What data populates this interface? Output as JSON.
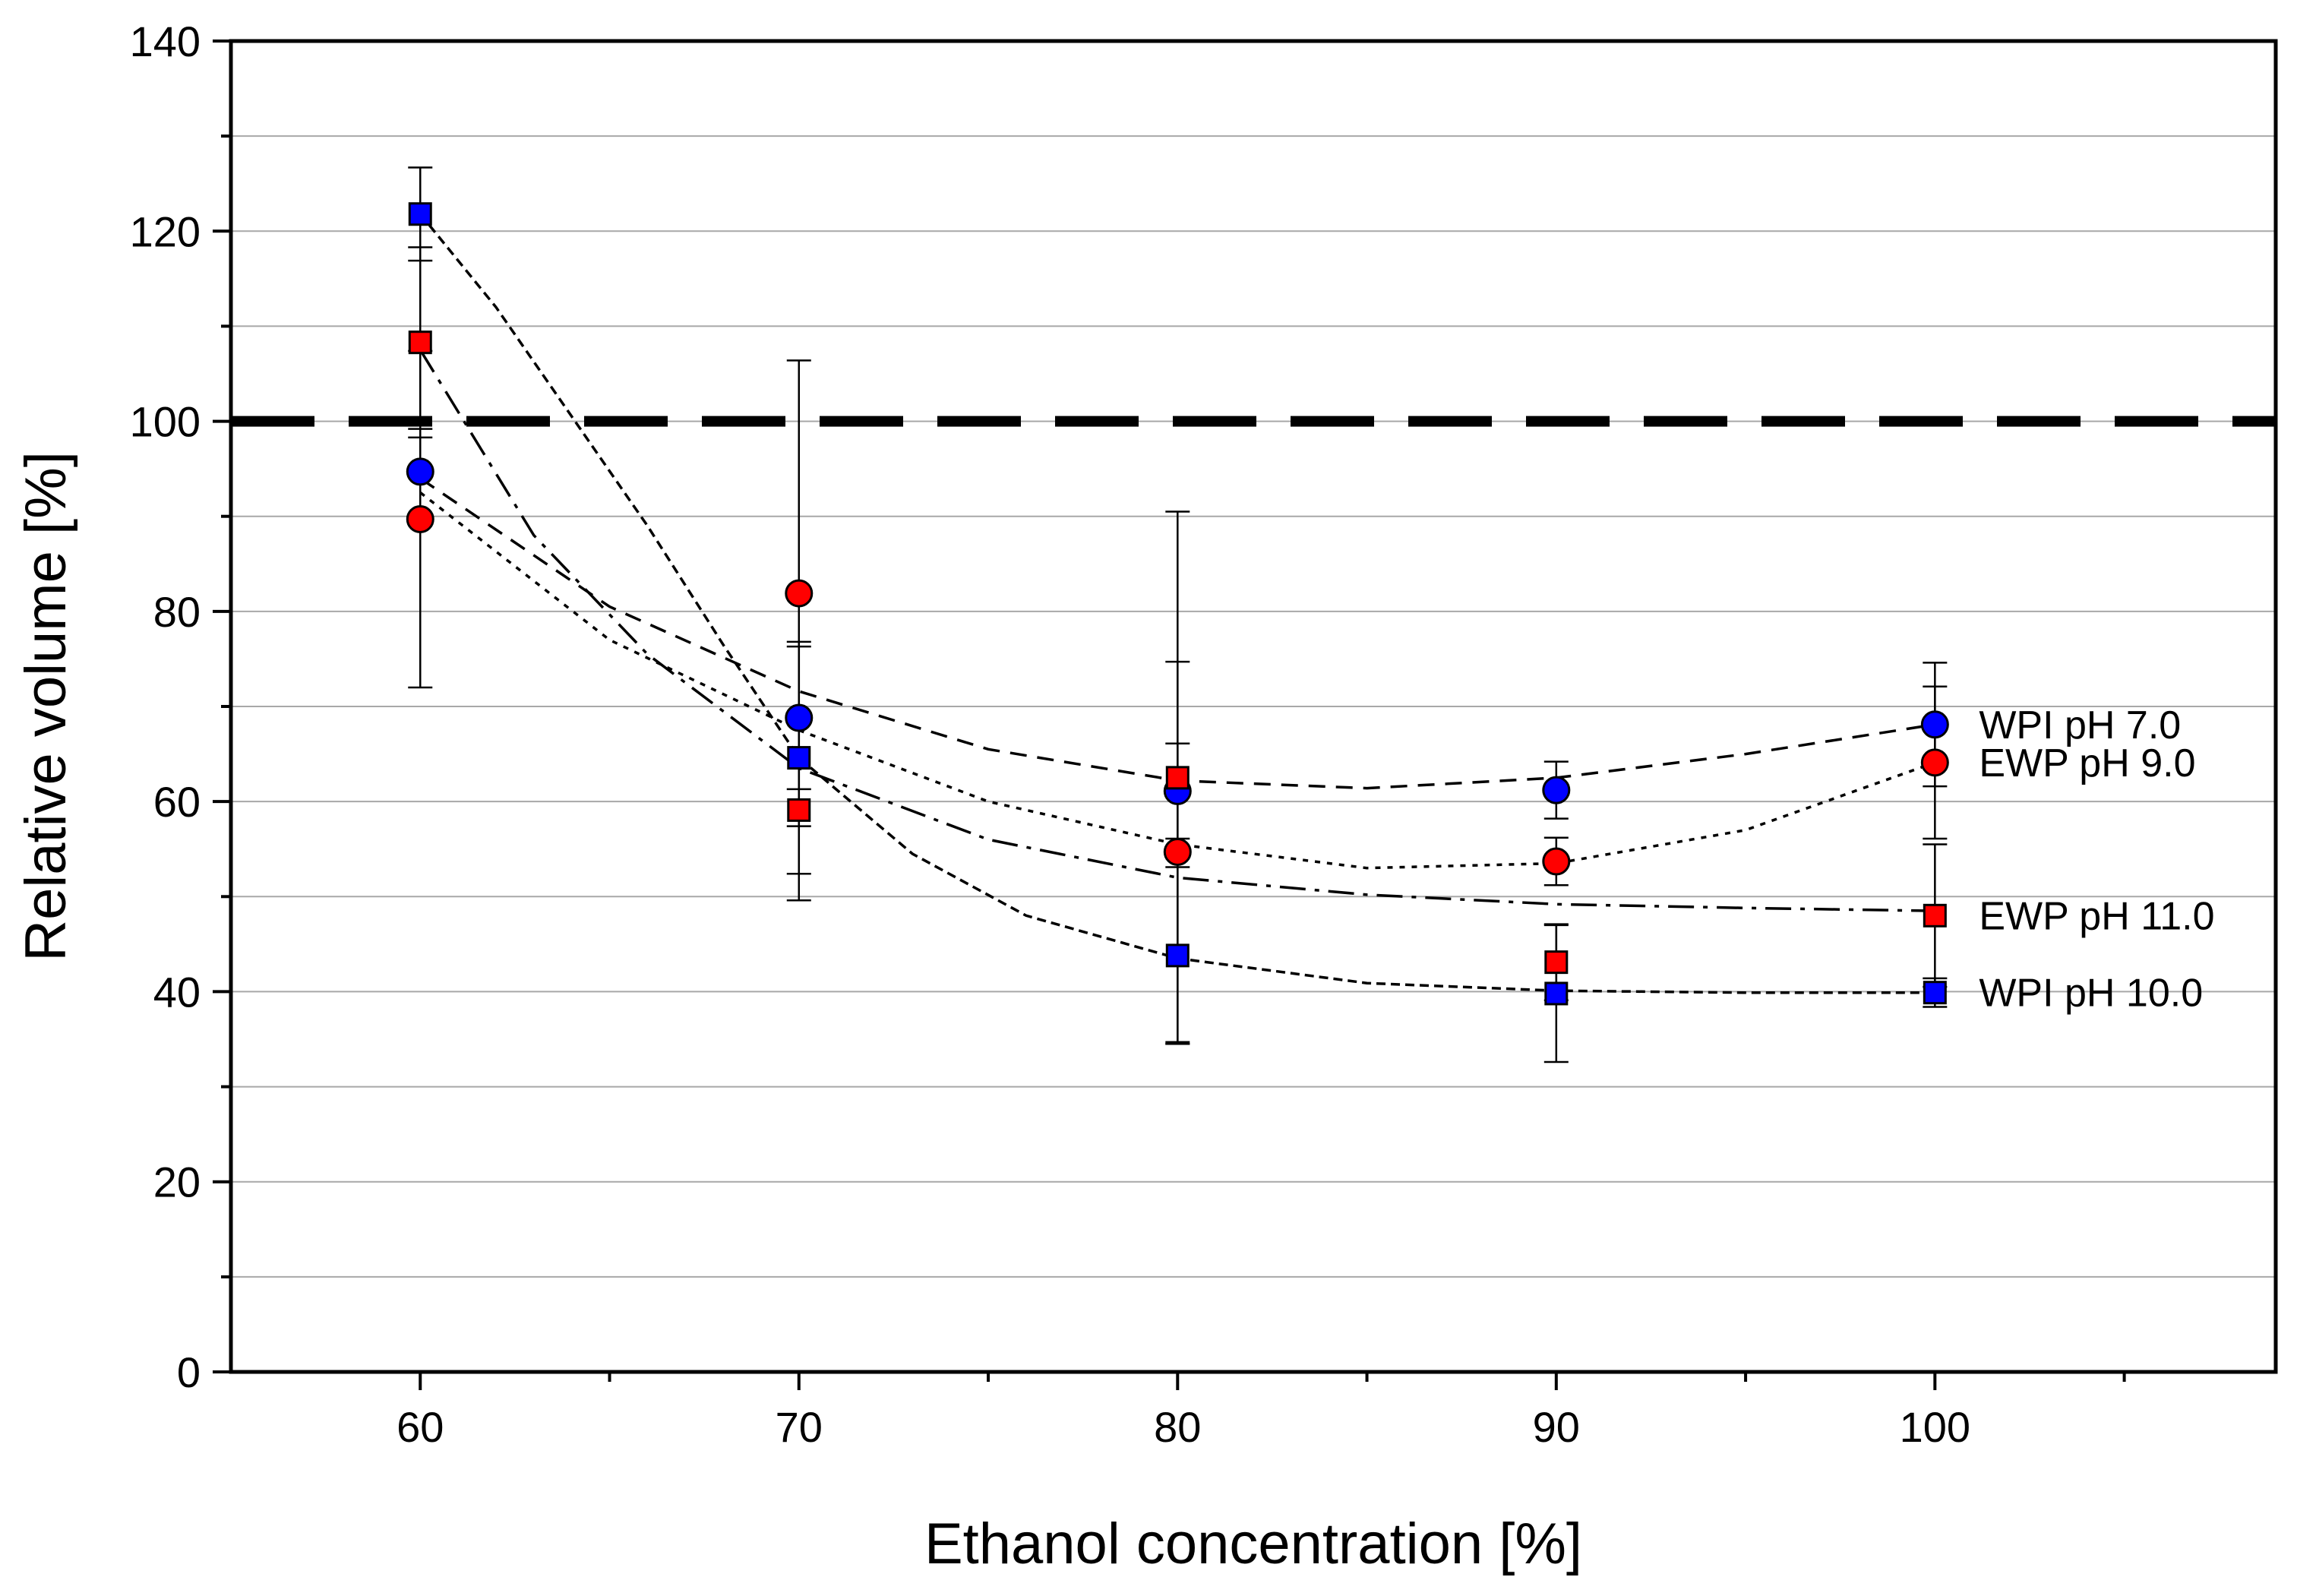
{
  "chart_data": {
    "type": "scatter",
    "title": "",
    "xlabel": "Ethanol concentration [%]",
    "ylabel": "Relative volume [%]",
    "xlim": [
      55,
      109
    ],
    "ylim": [
      0,
      140
    ],
    "x_ticks": [
      60,
      70,
      80,
      90,
      100
    ],
    "x_tick_labels": [
      "60",
      "70",
      "80",
      "90",
      "100"
    ],
    "y_ticks": [
      0,
      20,
      40,
      60,
      80,
      100,
      120,
      140
    ],
    "y_tick_labels": [
      "0",
      "20",
      "40",
      "60",
      "80",
      "100",
      "120",
      "140"
    ],
    "grid": true,
    "reference_line": {
      "y": 100,
      "style": "dashed"
    },
    "series": [
      {
        "name": "WPI pH 7.0",
        "marker": "circle",
        "color": "#0000ff",
        "line_dash": "dashed",
        "x": [
          60,
          70,
          80,
          90,
          100
        ],
        "y": [
          94.7,
          68.8,
          61.1,
          61.2,
          68.1
        ],
        "err": [
          4.5,
          7.5,
          5.0,
          3.0,
          6.5
        ],
        "fit": [
          [
            60,
            94.0
          ],
          [
            65,
            80.5
          ],
          [
            70,
            71.6
          ],
          [
            75,
            65.5
          ],
          [
            80,
            62.2
          ],
          [
            85,
            61.4
          ],
          [
            90,
            62.5
          ],
          [
            95,
            65.0
          ],
          [
            100,
            68.1
          ]
        ]
      },
      {
        "name": "EWP pH 9.0",
        "marker": "circle",
        "color": "#ff0000",
        "line_dash": "dotted",
        "x": [
          60,
          70,
          80,
          90,
          100
        ],
        "y": [
          89.7,
          81.9,
          54.7,
          53.7,
          64.1
        ],
        "err": [
          17.7,
          24.5,
          20.0,
          2.5,
          8.0
        ],
        "fit": [
          [
            60,
            92.5
          ],
          [
            65,
            77.0
          ],
          [
            70,
            67.5
          ],
          [
            75,
            60.0
          ],
          [
            80,
            55.5
          ],
          [
            85,
            53.0
          ],
          [
            90,
            53.5
          ],
          [
            95,
            57.0
          ],
          [
            100,
            64.1
          ]
        ]
      },
      {
        "name": "EWP pH 11.0",
        "marker": "square",
        "color": "#ff0000",
        "line_dash": "dashdot",
        "x": [
          60,
          70,
          80,
          90,
          100
        ],
        "y": [
          108.3,
          59.1,
          62.5,
          43.1,
          48.0
        ],
        "err": [
          10.0,
          9.5,
          28.0,
          4.0,
          7.5
        ],
        "fit": [
          [
            60,
            107.5
          ],
          [
            63,
            88.0
          ],
          [
            66,
            75.5
          ],
          [
            70,
            63.5
          ],
          [
            75,
            56.0
          ],
          [
            80,
            52.0
          ],
          [
            85,
            50.2
          ],
          [
            90,
            49.2
          ],
          [
            95,
            48.8
          ],
          [
            100,
            48.5
          ]
        ]
      },
      {
        "name": "WPI pH 10.0",
        "marker": "square",
        "color": "#0000ff",
        "line_dash": "short-dashed",
        "x": [
          60,
          70,
          80,
          90,
          100
        ],
        "y": [
          121.8,
          64.6,
          43.8,
          39.8,
          39.9
        ],
        "err": [
          4.9,
          12.2,
          9.3,
          7.2,
          1.5
        ],
        "fit": [
          [
            60,
            121.8
          ],
          [
            62,
            112.0
          ],
          [
            64,
            100.5
          ],
          [
            66,
            89.0
          ],
          [
            68,
            76.5
          ],
          [
            70,
            64.6
          ],
          [
            73,
            54.5
          ],
          [
            76,
            48.0
          ],
          [
            80,
            43.5
          ],
          [
            85,
            40.9
          ],
          [
            90,
            40.1
          ],
          [
            95,
            39.9
          ],
          [
            100,
            39.9
          ]
        ]
      }
    ]
  }
}
